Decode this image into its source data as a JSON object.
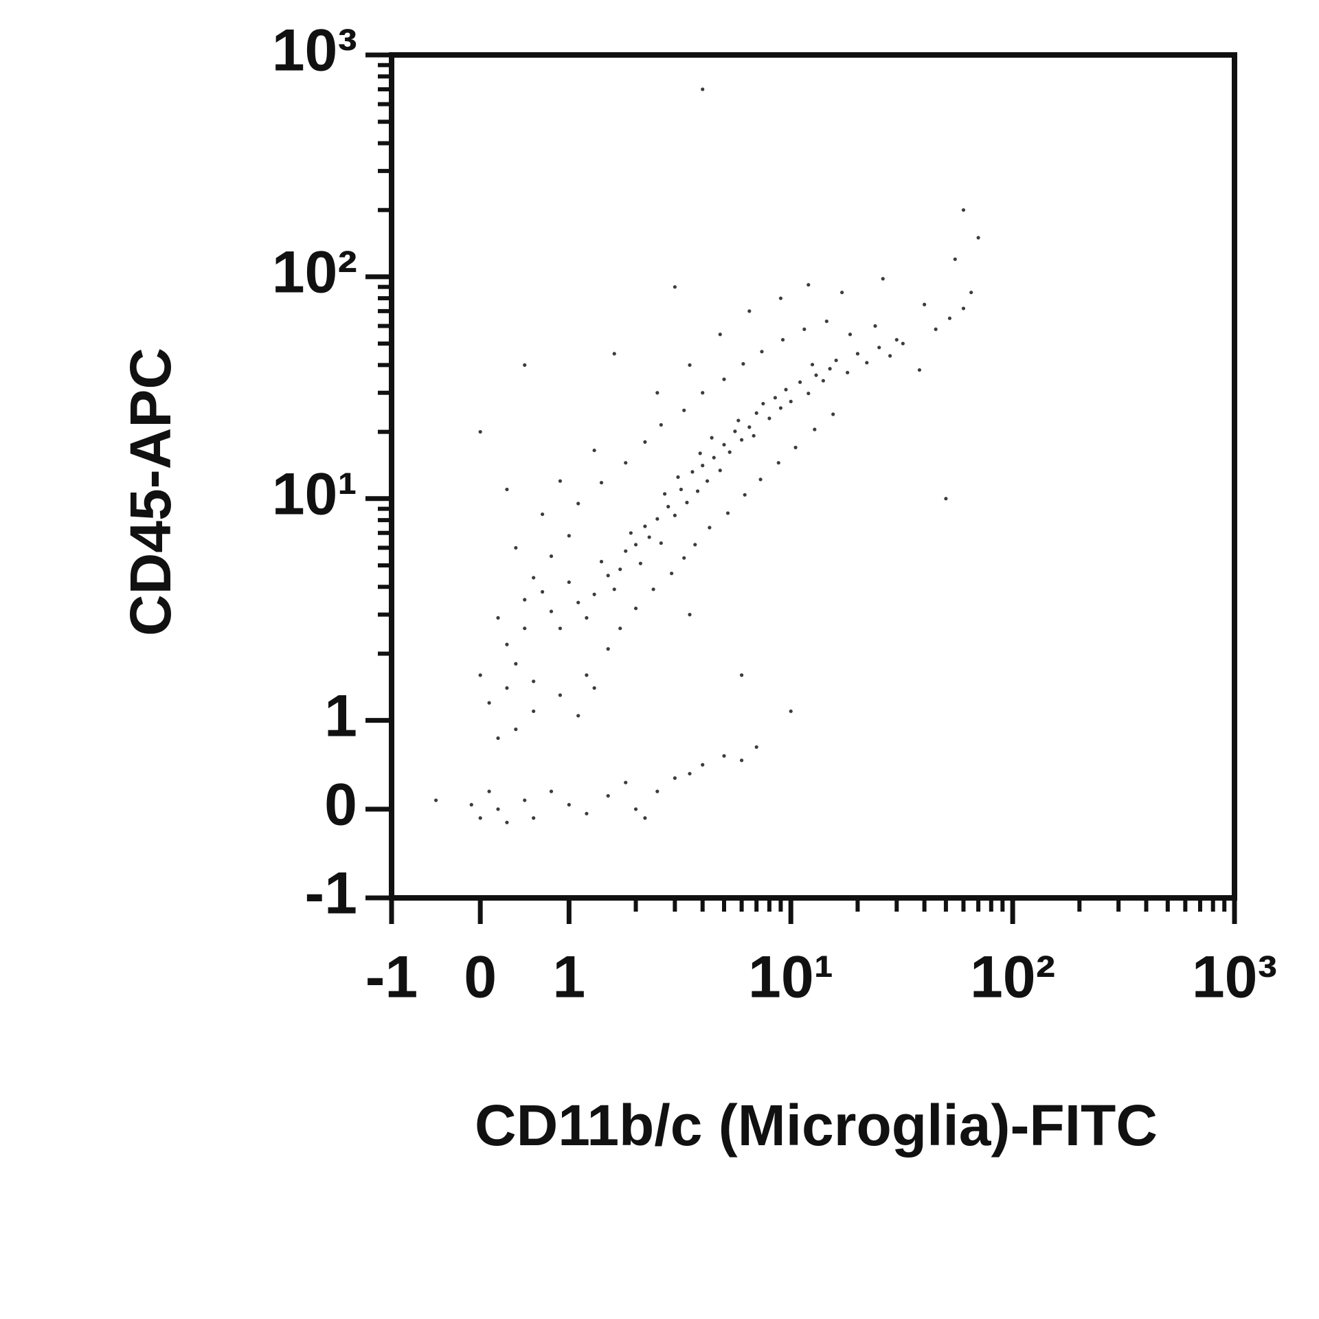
{
  "chart_data": {
    "type": "scatter",
    "scale": "biexponential",
    "x_label": "CD11b/c (Microglia)-FITC",
    "y_label": "CD45-APC",
    "color": "#1a1a1a",
    "xlim": [
      -1,
      1000
    ],
    "ylim": [
      -1,
      1000
    ],
    "xticks": [
      -1,
      0,
      1,
      {
        "value": 10,
        "label": "10¹"
      },
      {
        "value": 100,
        "label": "10²"
      },
      {
        "value": 1000,
        "label": "10³"
      }
    ],
    "yticks": [
      -1,
      0,
      1,
      {
        "value": 10,
        "label": "10¹"
      },
      {
        "value": 100,
        "label": "10²"
      },
      {
        "value": 1000,
        "label": "10³"
      }
    ],
    "xminorticks": [
      2,
      3,
      4,
      5,
      6,
      7,
      8,
      9,
      20,
      30,
      40,
      50,
      60,
      70,
      80,
      90,
      200,
      300,
      400,
      500,
      600,
      700,
      800,
      900
    ],
    "yminorticks": [
      2,
      3,
      4,
      5,
      6,
      7,
      8,
      9,
      20,
      30,
      40,
      50,
      60,
      70,
      80,
      90,
      200,
      300,
      400,
      500,
      600,
      700,
      800,
      900
    ],
    "x": [
      0.8,
      0.9,
      1.1,
      1.2,
      0.7,
      1,
      1.3,
      1.5,
      1.4,
      1.6,
      1.8,
      1.7,
      2,
      2.1,
      1.9,
      2.3,
      2.5,
      2.2,
      2.6,
      2.8,
      3,
      2.7,
      3.2,
      3.4,
      3.1,
      3.6,
      3.8,
      4,
      4.2,
      3.9,
      4.5,
      4.8,
      5,
      4.4,
      5.3,
      5.6,
      6,
      5.8,
      6.5,
      7,
      6.8,
      7.5,
      8,
      8.5,
      9,
      9.5,
      10,
      11,
      12,
      13,
      12.5,
      14,
      15,
      16,
      18,
      20,
      22,
      25,
      28,
      30,
      0.3,
      0.4,
      0.5,
      0.6,
      0.2,
      0.5,
      0.6,
      0.8,
      1,
      1.2,
      1.5,
      1.7,
      2,
      2.4,
      2.9,
      3.3,
      3.7,
      4.3,
      5.2,
      6.2,
      7.3,
      8.8,
      10.5,
      12.8,
      15.5,
      1.1,
      1.4,
      1.8,
      2.2,
      2.6,
      3.3,
      4,
      5,
      6.1,
      7.4,
      9.2,
      11.5,
      14.5,
      18.5,
      24,
      32,
      38,
      45,
      52,
      60,
      0.4,
      0.7,
      0.9,
      1.3,
      2.5,
      3.5,
      4.8,
      6.5,
      9,
      12,
      17,
      26,
      40,
      55,
      65,
      -0.5,
      -0.1,
      0,
      0.1,
      0.2,
      0.3,
      0.5,
      0.6,
      0.8,
      1,
      1.2,
      1.5,
      1.8,
      2,
      2.2,
      2.5,
      3,
      3.5,
      4,
      5,
      6,
      7,
      0.1,
      0.2,
      0.4,
      0.6,
      0.9,
      1.1,
      1.3,
      0,
      0.3,
      4,
      3,
      1.6,
      0.5,
      0,
      0.3,
      6,
      10,
      50,
      60,
      70,
      3.5
    ],
    "values": [
      3.1,
      2.6,
      3.4,
      2.9,
      3.8,
      4.2,
      3.7,
      4.5,
      5.2,
      3.9,
      5.8,
      4.8,
      6.2,
      5.1,
      7,
      6.7,
      8.1,
      7.5,
      6.3,
      9.2,
      8.4,
      10.5,
      11,
      9.6,
      12.5,
      13.2,
      10.8,
      14.1,
      12,
      16,
      15.3,
      13.4,
      17.5,
      18.8,
      16.2,
      20.1,
      18.4,
      22.5,
      21,
      24.3,
      19.2,
      26.8,
      23,
      28.5,
      25.6,
      31,
      27.4,
      33.5,
      29.8,
      36,
      40.2,
      34,
      38.5,
      42,
      37,
      45,
      41,
      48,
      44,
      52,
      2.2,
      1.8,
      2.6,
      1.5,
      2.9,
      3.5,
      4.4,
      5.5,
      6.8,
      1.6,
      2.1,
      2.6,
      3.2,
      3.9,
      4.6,
      5.4,
      6.2,
      7.4,
      8.6,
      10.4,
      12.2,
      14.5,
      17,
      20.5,
      24,
      9.5,
      11.8,
      14.5,
      18,
      21.5,
      25,
      30,
      34.5,
      40.5,
      46,
      52,
      58,
      63,
      55,
      60,
      50,
      38,
      58,
      65,
      72,
      6,
      8.5,
      12,
      16.5,
      30,
      40,
      55,
      70,
      80,
      92,
      85,
      98,
      75,
      120,
      85,
      0.1,
      0.05,
      -0.1,
      0.2,
      0,
      -0.15,
      0.1,
      -0.1,
      0.2,
      0.05,
      -0.05,
      0.15,
      0.3,
      0,
      -0.1,
      0.2,
      0.35,
      0.4,
      0.5,
      0.6,
      0.55,
      0.7,
      1.2,
      0.8,
      0.9,
      1.1,
      1.3,
      1.05,
      1.4,
      1.6,
      1.4,
      700,
      90,
      45,
      40,
      20,
      11,
      1.6,
      1.1,
      10,
      200,
      150,
      3
    ]
  }
}
